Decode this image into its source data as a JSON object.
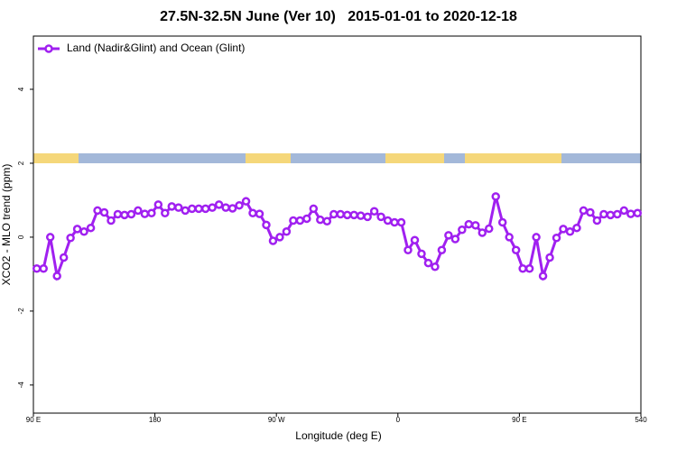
{
  "chart_data": {
    "type": "line",
    "title": "27.5N-32.5N June (Ver 10)   2015-01-01 to 2020-12-18",
    "x_label": "Longitude (deg E)",
    "y_label": "XCO2 - MLO trend (ppm)",
    "x": [
      92.5,
      97.5,
      102.5,
      107.5,
      112.5,
      117.5,
      122.5,
      127.5,
      132.5,
      137.5,
      142.5,
      147.5,
      152.5,
      157.5,
      162.5,
      167.5,
      172.5,
      177.5,
      182.5,
      187.5,
      192.5,
      197.5,
      202.5,
      207.5,
      212.5,
      217.5,
      222.5,
      227.5,
      232.5,
      237.5,
      242.5,
      247.5,
      252.5,
      257.5,
      262.5,
      267.5,
      272.5,
      277.5,
      282.5,
      287.5,
      292.5,
      297.5,
      302.5,
      307.5,
      312.5,
      317.5,
      322.5,
      327.5,
      332.5,
      337.5,
      342.5,
      347.5,
      352.5,
      357.5,
      362.5,
      367.5,
      372.5,
      377.5,
      382.5,
      387.5,
      392.5,
      397.5,
      402.5,
      407.5,
      412.5,
      417.5,
      422.5,
      427.5,
      432.5,
      437.5,
      442.5,
      447.5,
      452.5,
      457.5,
      462.5,
      467.5,
      472.5,
      477.5,
      482.5,
      487.5,
      492.5,
      497.5,
      502.5,
      507.5,
      512.5,
      517.5,
      522.5,
      527.5,
      532.5,
      537.5
    ],
    "series": [
      {
        "name": "Land (Nadir&Glint) and Ocean (Glint)",
        "color": "#a020f0",
        "values": [
          -0.85,
          -0.85,
          0.0,
          -1.05,
          -0.55,
          -0.02,
          0.22,
          0.15,
          0.25,
          0.72,
          0.67,
          0.45,
          0.62,
          0.6,
          0.62,
          0.72,
          0.63,
          0.65,
          0.88,
          0.65,
          0.83,
          0.8,
          0.72,
          0.77,
          0.77,
          0.77,
          0.8,
          0.88,
          0.8,
          0.78,
          0.86,
          0.97,
          0.65,
          0.63,
          0.33,
          -0.1,
          0.0,
          0.15,
          0.45,
          0.45,
          0.5,
          0.77,
          0.47,
          0.43,
          0.62,
          0.62,
          0.6,
          0.6,
          0.58,
          0.55,
          0.7,
          0.55,
          0.45,
          0.4,
          0.4,
          -0.35,
          -0.08,
          -0.45,
          -0.7,
          -0.8,
          -0.35,
          0.05,
          -0.05,
          0.2,
          0.35,
          0.32,
          0.12,
          0.23,
          1.1,
          0.4,
          0.0,
          -0.35,
          -0.85,
          -0.85,
          0.0,
          -1.05,
          -0.55,
          -0.02,
          0.22,
          0.15,
          0.25,
          0.72,
          0.67,
          0.45,
          0.62,
          0.6,
          0.62,
          0.72,
          0.63,
          0.65
        ]
      }
    ],
    "xlim": [
      90,
      540
    ],
    "xticks": [
      {
        "value": 90,
        "label": "90 E"
      },
      180,
      {
        "value": 270,
        "label": "90 W"
      },
      {
        "value": 360,
        "label": "0"
      },
      {
        "value": 450,
        "label": "90 E"
      },
      540
    ],
    "ylim": [
      -4.76,
      5.44
    ],
    "yticks": [
      -4,
      -2,
      0,
      2,
      4
    ],
    "grid": false,
    "legend": "top-left"
  }
}
